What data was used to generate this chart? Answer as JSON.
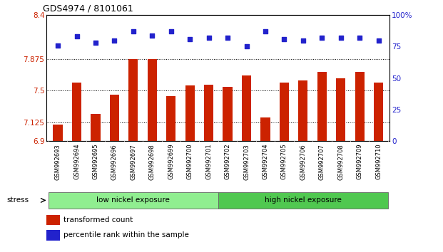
{
  "title": "GDS4974 / 8101061",
  "samples": [
    "GSM992693",
    "GSM992694",
    "GSM992695",
    "GSM992696",
    "GSM992697",
    "GSM992698",
    "GSM992699",
    "GSM992700",
    "GSM992701",
    "GSM992702",
    "GSM992703",
    "GSM992704",
    "GSM992705",
    "GSM992706",
    "GSM992707",
    "GSM992708",
    "GSM992709",
    "GSM992710"
  ],
  "bar_values": [
    7.1,
    7.6,
    7.22,
    7.45,
    7.875,
    7.875,
    7.44,
    7.56,
    7.575,
    7.55,
    7.68,
    7.18,
    7.6,
    7.62,
    7.72,
    7.65,
    7.72,
    7.6
  ],
  "dot_values": [
    76,
    83,
    78,
    80,
    87,
    84,
    87,
    81,
    82,
    82,
    75,
    87,
    81,
    80,
    82,
    82,
    82,
    80
  ],
  "ylim_left": [
    6.9,
    8.4
  ],
  "ylim_right": [
    0,
    100
  ],
  "yticks_left": [
    6.9,
    7.125,
    7.5,
    7.875,
    8.4
  ],
  "ytick_labels_left": [
    "6.9",
    "7.125",
    "7.5",
    "7.875",
    "8.4"
  ],
  "yticks_right": [
    0,
    25,
    50,
    75,
    100
  ],
  "ytick_labels_right": [
    "0",
    "25",
    "50",
    "75",
    "100%"
  ],
  "hlines": [
    7.125,
    7.5,
    7.875
  ],
  "bar_color": "#cc2200",
  "dot_color": "#2222cc",
  "bg_color": "#ffffff",
  "tick_label_color_left": "#cc2200",
  "tick_label_color_right": "#2222cc",
  "group1_label": "low nickel exposure",
  "group2_label": "high nickel exposure",
  "group1_color": "#90ee90",
  "group2_color": "#50c850",
  "group1_count": 9,
  "stress_label": "stress",
  "legend_bar_label": "transformed count",
  "legend_dot_label": "percentile rank within the sample",
  "n_samples": 18
}
